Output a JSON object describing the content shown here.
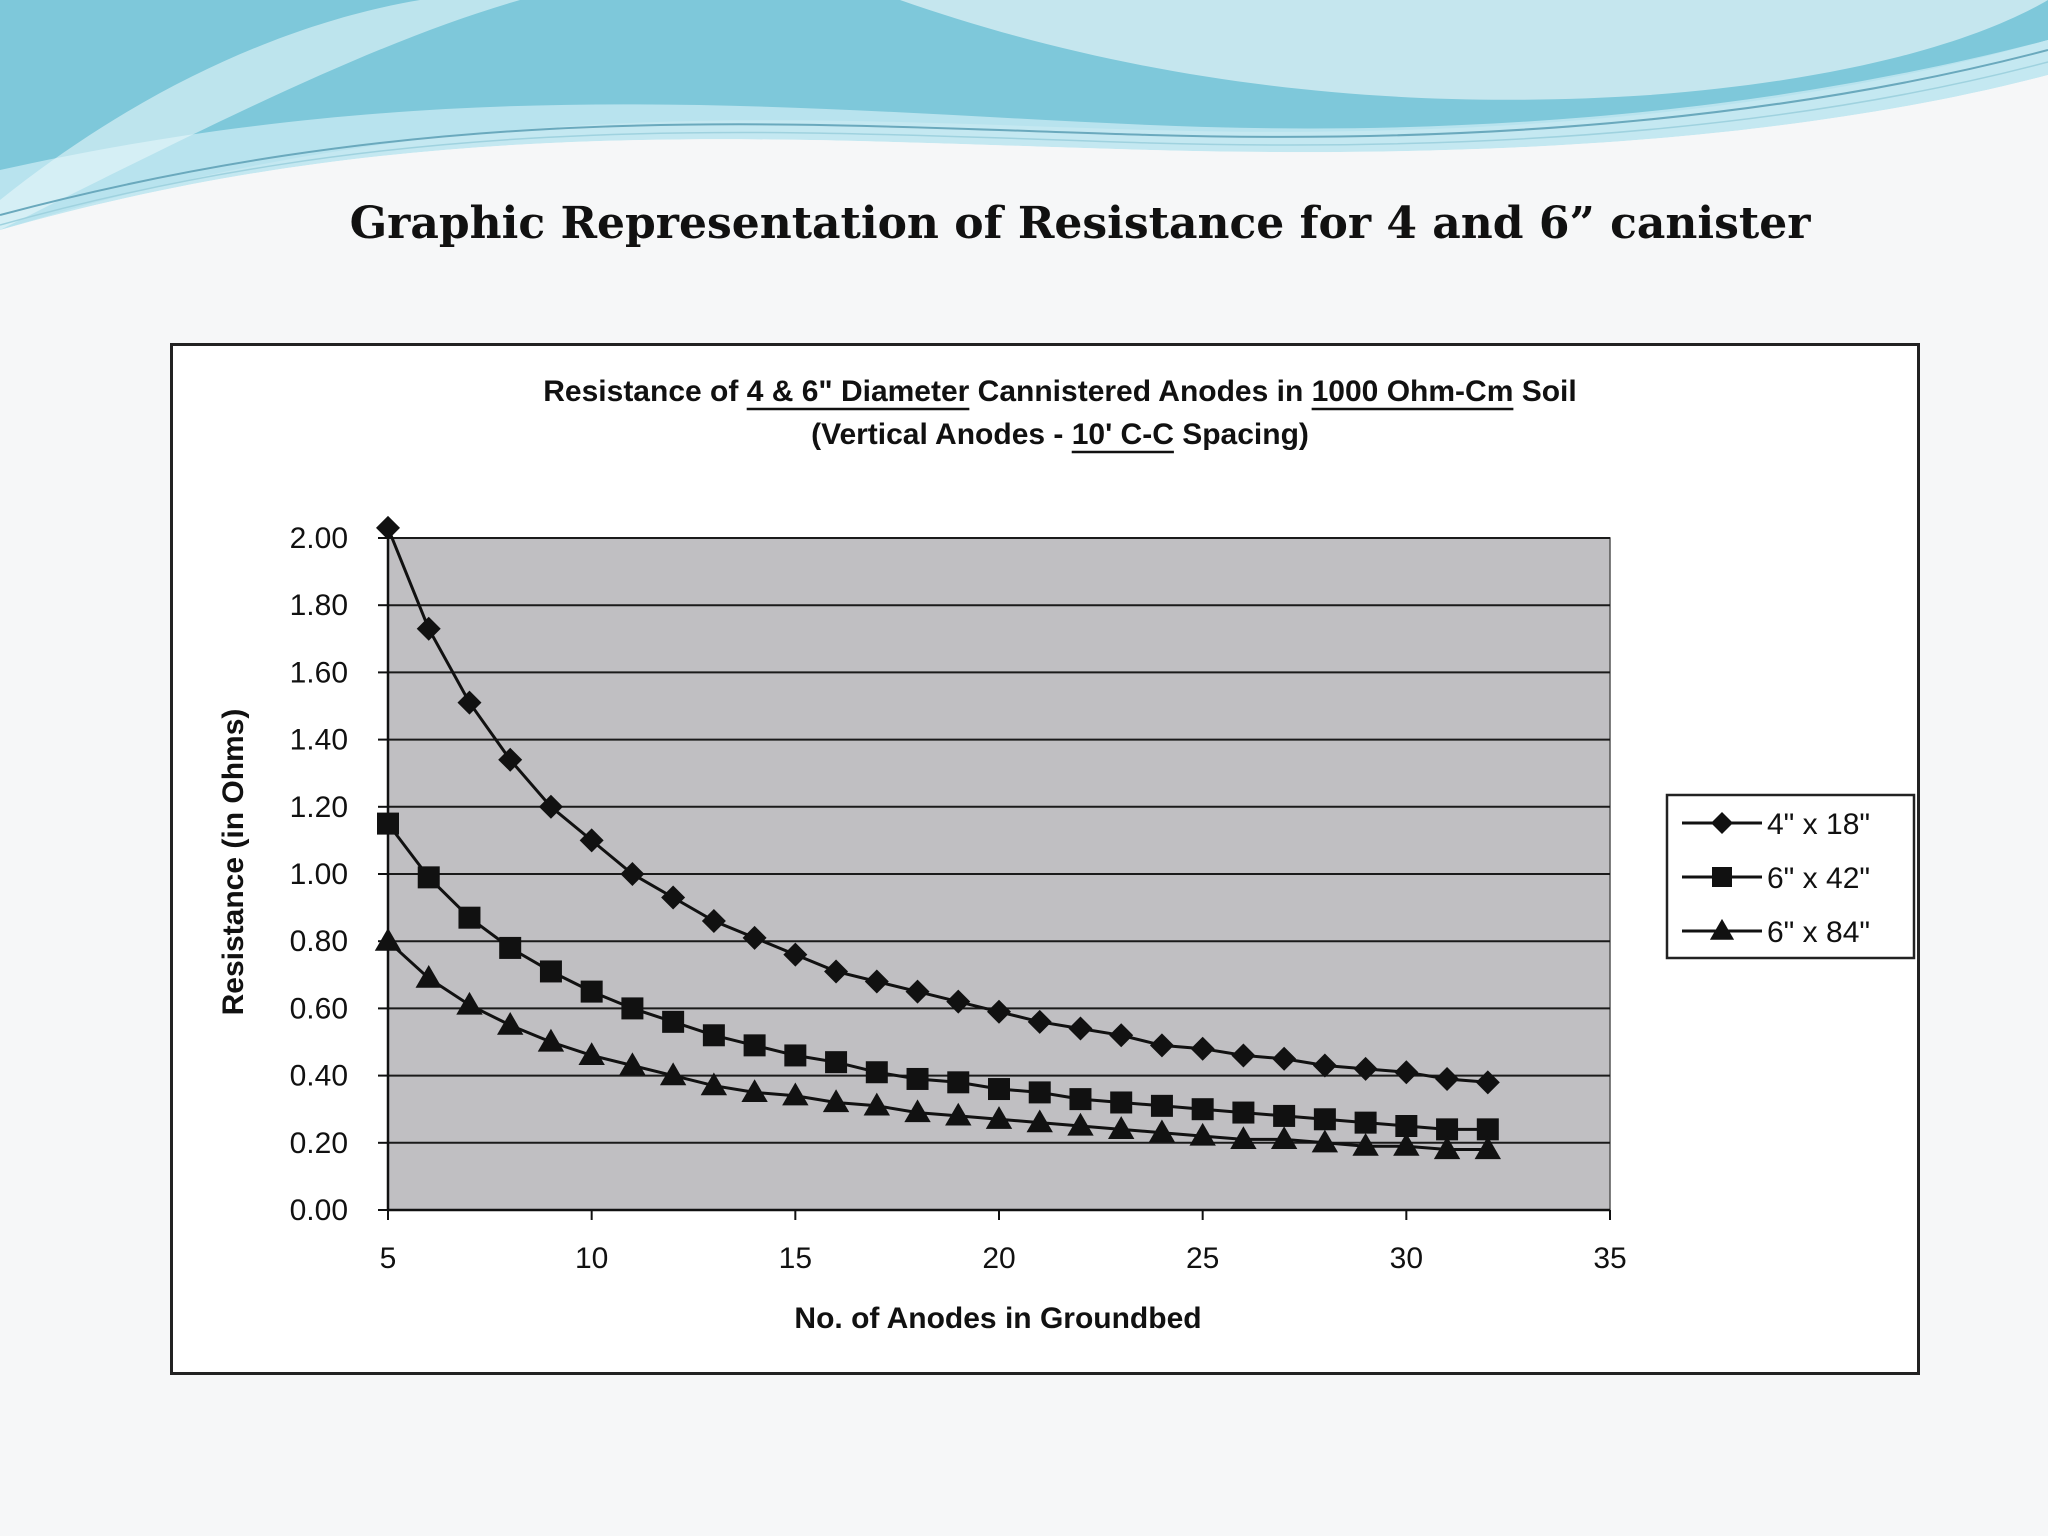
{
  "slide": {
    "title": "Graphic Representation of Resistance for 4 and 6” canister"
  },
  "colors": {
    "wave_primary": "#7ec8da",
    "wave_light": "#bfe6ef",
    "plot_background": "#c0bfc2",
    "series_color": "#111111"
  },
  "chart_data": {
    "type": "line",
    "title_line1_parts": [
      {
        "text": "Resistance of ",
        "underline": false
      },
      {
        "text": "4 & 6\" Diameter",
        "underline": true
      },
      {
        "text": " Cannistered Anodes in ",
        "underline": false
      },
      {
        "text": "1000 Ohm-Cm",
        "underline": true
      },
      {
        "text": " Soil",
        "underline": false
      }
    ],
    "title_line2_parts": [
      {
        "text": "(Vertical Anodes - ",
        "underline": false
      },
      {
        "text": "10' C-C",
        "underline": true
      },
      {
        "text": " Spacing)",
        "underline": false
      }
    ],
    "xlabel": "No. of Anodes in Groundbed",
    "ylabel": "Resistance (in Ohms)",
    "xlim": [
      5,
      35
    ],
    "ylim": [
      0,
      2
    ],
    "xticks": [
      5,
      10,
      15,
      20,
      25,
      30,
      35
    ],
    "yticks": [
      "0.00",
      "0.20",
      "0.40",
      "0.60",
      "0.80",
      "1.00",
      "1.20",
      "1.40",
      "1.60",
      "1.80",
      "2.00"
    ],
    "grid": "horizontal",
    "legend_position": "right",
    "x": [
      5,
      6,
      7,
      8,
      9,
      10,
      11,
      12,
      13,
      14,
      15,
      16,
      17,
      18,
      19,
      20,
      21,
      22,
      23,
      24,
      25,
      26,
      27,
      28,
      29,
      30,
      31,
      32
    ],
    "series": [
      {
        "name": "4\" x 18\"",
        "marker": "diamond",
        "values": [
          2.03,
          1.73,
          1.51,
          1.34,
          1.2,
          1.1,
          1.0,
          0.93,
          0.86,
          0.81,
          0.76,
          0.71,
          0.68,
          0.65,
          0.62,
          0.59,
          0.56,
          0.54,
          0.52,
          0.49,
          0.48,
          0.46,
          0.45,
          0.43,
          0.42,
          0.41,
          0.39,
          0.38
        ]
      },
      {
        "name": "6\" x 42\"",
        "marker": "square",
        "values": [
          1.15,
          0.99,
          0.87,
          0.78,
          0.71,
          0.65,
          0.6,
          0.56,
          0.52,
          0.49,
          0.46,
          0.44,
          0.41,
          0.39,
          0.38,
          0.36,
          0.35,
          0.33,
          0.32,
          0.31,
          0.3,
          0.29,
          0.28,
          0.27,
          0.26,
          0.25,
          0.24,
          0.24
        ]
      },
      {
        "name": "6\" x 84\"",
        "marker": "triangle",
        "values": [
          0.8,
          0.69,
          0.61,
          0.55,
          0.5,
          0.46,
          0.43,
          0.4,
          0.37,
          0.35,
          0.34,
          0.32,
          0.31,
          0.29,
          0.28,
          0.27,
          0.26,
          0.25,
          0.24,
          0.23,
          0.22,
          0.21,
          0.21,
          0.2,
          0.19,
          0.19,
          0.18,
          0.18
        ]
      }
    ]
  }
}
